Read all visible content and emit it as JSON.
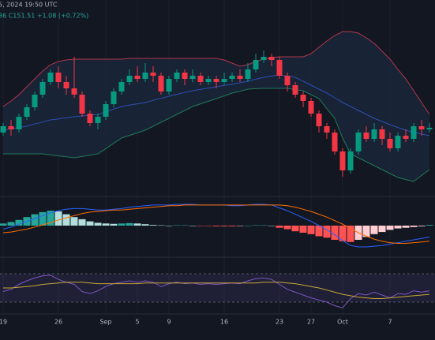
{
  "chart_data": {
    "type": "candlestick",
    "title": "5, 2024 19:50 UTC",
    "subtitle": "36  C151.51 +1.08 (+0.72%)",
    "categories": [
      "19",
      null,
      null,
      null,
      null,
      null,
      null,
      "26",
      null,
      null,
      null,
      null,
      null,
      "Sep",
      null,
      null,
      null,
      "5",
      null,
      null,
      null,
      "9",
      null,
      null,
      null,
      null,
      null,
      null,
      "16",
      null,
      null,
      null,
      null,
      null,
      null,
      "23",
      null,
      null,
      null,
      "27",
      null,
      null,
      null,
      "Oct",
      null,
      null,
      null,
      null,
      null,
      "7",
      null,
      null,
      null,
      null,
      null
    ],
    "ylim": [
      130,
      192
    ],
    "up_color": "#089981",
    "down_color": "#f23645",
    "ohlc": [
      [
        150,
        153,
        149,
        152
      ],
      [
        152,
        154,
        149,
        151
      ],
      [
        151,
        156,
        150,
        155
      ],
      [
        155,
        159,
        154,
        158
      ],
      [
        158,
        163,
        157,
        162
      ],
      [
        162,
        167,
        161,
        166
      ],
      [
        166,
        170,
        165,
        169
      ],
      [
        169,
        171,
        164,
        166
      ],
      [
        166,
        168,
        162,
        164
      ],
      [
        164,
        174,
        161,
        162
      ],
      [
        162,
        163,
        155,
        156
      ],
      [
        156,
        157,
        152,
        153
      ],
      [
        153,
        156,
        151,
        155
      ],
      [
        155,
        160,
        154,
        159
      ],
      [
        159,
        164,
        158,
        163
      ],
      [
        163,
        167,
        162,
        166
      ],
      [
        166,
        170,
        165,
        168
      ],
      [
        168,
        171,
        166,
        167
      ],
      [
        167,
        172,
        166,
        169
      ],
      [
        169,
        171,
        166,
        168
      ],
      [
        168,
        169,
        162,
        163
      ],
      [
        163,
        168,
        162,
        167
      ],
      [
        167,
        170,
        166,
        169
      ],
      [
        169,
        170,
        165,
        167
      ],
      [
        167,
        170,
        166,
        168
      ],
      [
        168,
        169,
        165,
        166
      ],
      [
        166,
        168,
        165,
        167
      ],
      [
        167,
        168,
        164,
        166
      ],
      [
        166,
        169,
        165,
        167
      ],
      [
        167,
        169,
        166,
        168
      ],
      [
        168,
        170,
        166,
        167
      ],
      [
        167,
        172,
        166,
        170
      ],
      [
        170,
        175,
        169,
        173
      ],
      [
        173,
        176,
        172,
        174
      ],
      [
        174,
        175,
        171,
        173
      ],
      [
        173,
        174,
        167,
        168
      ],
      [
        168,
        169,
        163,
        165
      ],
      [
        165,
        166,
        161,
        162
      ],
      [
        162,
        163,
        158,
        160
      ],
      [
        160,
        161,
        155,
        156
      ],
      [
        156,
        157,
        150,
        152
      ],
      [
        152,
        153,
        148,
        150
      ],
      [
        150,
        151,
        143,
        144
      ],
      [
        144,
        145,
        136,
        138
      ],
      [
        138,
        145,
        137,
        144
      ],
      [
        144,
        151,
        143,
        150
      ],
      [
        150,
        152,
        147,
        148
      ],
      [
        148,
        153,
        147,
        151
      ],
      [
        151,
        152,
        146,
        148
      ],
      [
        148,
        150,
        144,
        145
      ],
      [
        145,
        150,
        144,
        149
      ],
      [
        149,
        151,
        147,
        148
      ],
      [
        148,
        153,
        147,
        152
      ],
      [
        152,
        154,
        149,
        151
      ],
      [
        151,
        153,
        150,
        151.51
      ]
    ],
    "bands": [
      {
        "name": "upper",
        "color": "#b2374a",
        "values": [
          158.25,
          160,
          162,
          164.5,
          167,
          169.5,
          171.5,
          172.5,
          173,
          173.25,
          173.25,
          173.25,
          173.25,
          173.25,
          173.25,
          173.25,
          173.5,
          173.5,
          173.5,
          173.5,
          173.5,
          173.5,
          173.5,
          173.5,
          173.5,
          173.5,
          173.5,
          173.5,
          173,
          172,
          171,
          171.5,
          172.5,
          173.25,
          173.75,
          174,
          174,
          174,
          174,
          175,
          177,
          179,
          180.75,
          182,
          182,
          181.5,
          180,
          178.25,
          175.75,
          173.25,
          170,
          167,
          163.25,
          159.5,
          155.75
        ]
      },
      {
        "name": "basis",
        "color": "#2d4fb5",
        "values": [
          150.75,
          151.2,
          151.6,
          152,
          152.7,
          153.3,
          154,
          154.3,
          154.7,
          155,
          155.25,
          155.5,
          155.75,
          156.6,
          157.4,
          158.25,
          158.7,
          159.1,
          159.5,
          160.2,
          160.8,
          161.5,
          162.1,
          162.7,
          163.25,
          163.7,
          164.1,
          164.5,
          164.9,
          165.3,
          165.75,
          166.3,
          166.9,
          167.5,
          167.9,
          168.25,
          167.9,
          167.5,
          166.25,
          165,
          163.75,
          162.5,
          161,
          159.5,
          158.25,
          157,
          155.75,
          154.5,
          153.5,
          152.5,
          151.6,
          150.75,
          150.1,
          149.5,
          149
        ]
      },
      {
        "name": "lower",
        "color": "#1f7a5a",
        "values": [
          143.25,
          143.25,
          143.25,
          143.25,
          143.25,
          143.25,
          142.9,
          142.6,
          142.3,
          142,
          142.4,
          142.8,
          143.25,
          144.9,
          146.6,
          148.25,
          149.1,
          149.9,
          150.75,
          152,
          153.25,
          154.5,
          155.75,
          157,
          158.25,
          159.1,
          159.9,
          160.75,
          161.6,
          162.5,
          163.1,
          163.75,
          163.9,
          164,
          164,
          164,
          164,
          163.6,
          163.25,
          162,
          160.75,
          157.6,
          154.5,
          148.25,
          143.25,
          142,
          140.75,
          139.5,
          138.25,
          137,
          135.75,
          135.1,
          134.5,
          136.4,
          138.25
        ]
      }
    ],
    "band_fill": "#1b2a3d",
    "macd": {
      "ylim": [
        -4,
        4
      ],
      "histogram": [
        0.3,
        0.5,
        0.8,
        1.2,
        1.6,
        1.9,
        2.1,
        2.0,
        1.6,
        1.2,
        0.9,
        0.6,
        0.4,
        0.3,
        0.25,
        0.3,
        0.35,
        0.3,
        0.2,
        0.1,
        0.05,
        0,
        0.05,
        0.05,
        0,
        -0.05,
        -0.05,
        -0.1,
        -0.1,
        -0.1,
        -0.05,
        0,
        0.05,
        0.05,
        0,
        -0.3,
        -0.5,
        -0.8,
        -1.0,
        -1.2,
        -1.5,
        -1.7,
        -2.0,
        -2.2,
        -2.3,
        -2.0,
        -1.6,
        -1.2,
        -0.9,
        -0.6,
        -0.4,
        -0.3,
        -0.2,
        -0.1,
        0.1
      ],
      "colors": {
        "pos_up": "#26a69a",
        "pos_down": "#b2dfdb",
        "neg_down": "#ff5252",
        "neg_up": "#ffcdd2"
      },
      "series": [
        {
          "name": "macd",
          "color": "#2962ff",
          "values": [
            -0.5,
            -0.2,
            0.2,
            0.6,
            1.0,
            1.4,
            1.8,
            2.1,
            2.3,
            2.4,
            2.4,
            2.3,
            2.2,
            2.2,
            2.3,
            2.4,
            2.6,
            2.7,
            2.8,
            2.9,
            2.9,
            2.9,
            3.0,
            3.0,
            3.0,
            2.9,
            2.9,
            2.9,
            2.9,
            2.8,
            2.8,
            2.9,
            3.0,
            3.0,
            2.9,
            2.5,
            2.1,
            1.6,
            1.1,
            0.6,
            0.0,
            -0.6,
            -1.3,
            -2.1,
            -2.8,
            -3.0,
            -3.0,
            -2.9,
            -2.8,
            -2.6,
            -2.4,
            -2.2,
            -2.0,
            -1.8,
            -1.6
          ]
        },
        {
          "name": "signal",
          "color": "#ff6d00",
          "values": [
            -1.0,
            -0.9,
            -0.7,
            -0.5,
            -0.2,
            0.1,
            0.4,
            0.8,
            1.1,
            1.4,
            1.7,
            1.9,
            2.0,
            2.1,
            2.2,
            2.2,
            2.3,
            2.4,
            2.5,
            2.6,
            2.7,
            2.8,
            2.8,
            2.9,
            2.9,
            2.9,
            2.9,
            2.9,
            2.9,
            2.9,
            2.9,
            2.9,
            2.9,
            2.9,
            2.9,
            2.9,
            2.8,
            2.6,
            2.3,
            2.0,
            1.6,
            1.2,
            0.7,
            0.2,
            -0.4,
            -1.0,
            -1.5,
            -1.9,
            -2.2,
            -2.4,
            -2.5,
            -2.5,
            -2.4,
            -2.3,
            -2.2
          ]
        }
      ]
    },
    "rsi": {
      "ylim": [
        0,
        100
      ],
      "band": [
        30,
        70
      ],
      "band_color": "#7e57c2",
      "series": [
        {
          "name": "rsi",
          "color": "#7e57c2",
          "values": [
            45,
            48,
            55,
            60,
            64,
            67,
            68,
            62,
            58,
            55,
            45,
            42,
            46,
            52,
            56,
            58,
            60,
            58,
            60,
            58,
            52,
            56,
            58,
            56,
            57,
            55,
            56,
            55,
            56,
            57,
            56,
            60,
            63,
            64,
            62,
            55,
            48,
            44,
            40,
            36,
            33,
            30,
            25,
            22,
            35,
            42,
            40,
            44,
            40,
            36,
            42,
            41,
            46,
            44,
            46
          ]
        },
        {
          "name": "rsi-ma",
          "color": "#c9a83a",
          "values": [
            50,
            50,
            51,
            52,
            53,
            55,
            56,
            57,
            58,
            58,
            58,
            57,
            56,
            56,
            56,
            56,
            56,
            56,
            57,
            57,
            57,
            57,
            57,
            57,
            57,
            57,
            57,
            57,
            57,
            57,
            57,
            57,
            57,
            58,
            58,
            58,
            57,
            56,
            54,
            52,
            50,
            47,
            44,
            41,
            39,
            37,
            36,
            35,
            35,
            36,
            37,
            38,
            39,
            40,
            41
          ]
        }
      ]
    }
  }
}
